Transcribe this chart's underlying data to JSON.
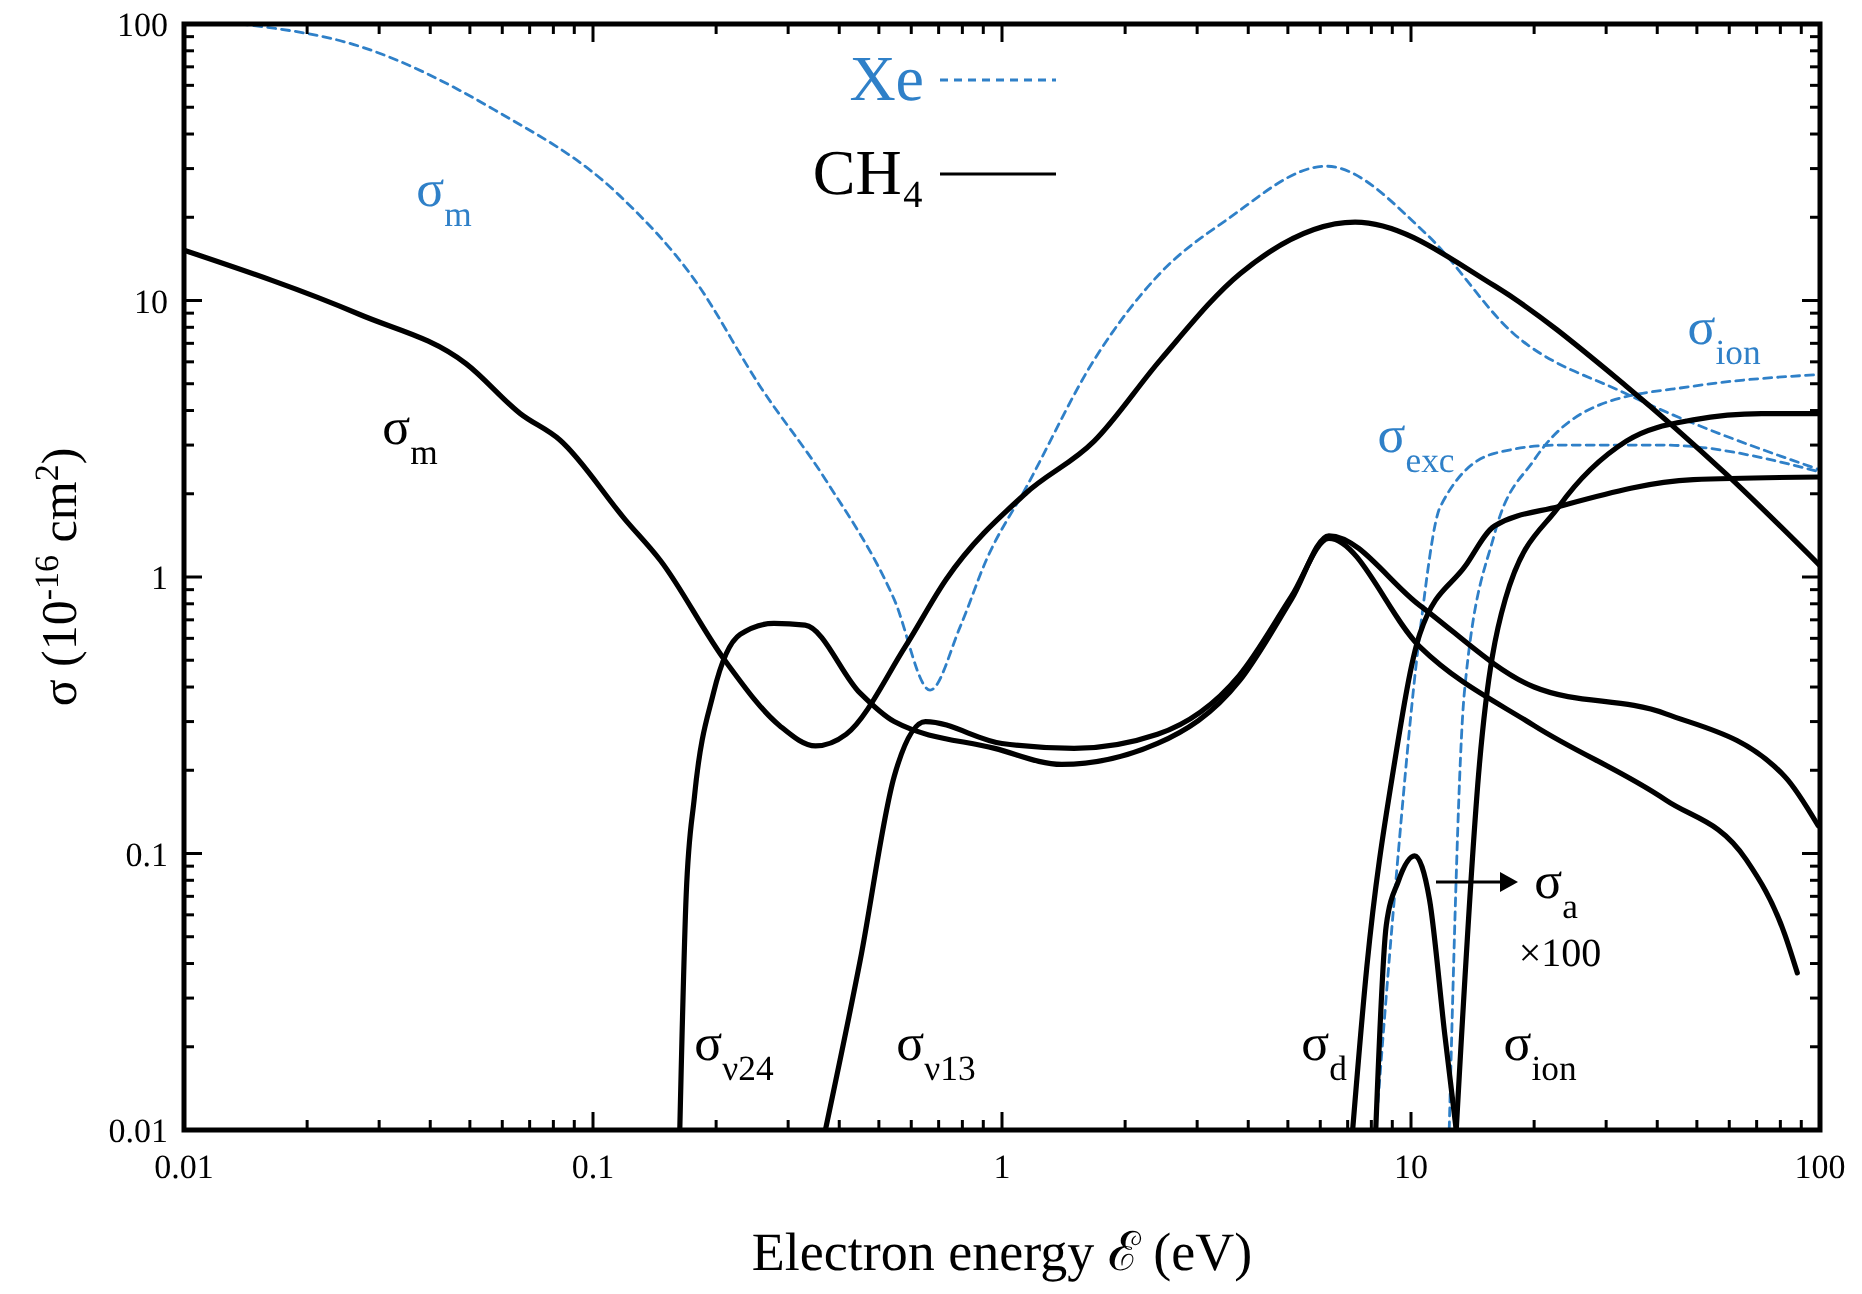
{
  "chart_data": {
    "type": "line",
    "xlabel": "Electron energy  ℰ (eV)",
    "ylabel": "σ (10$^{-16}$ cm$^{2}$)",
    "log": "xy",
    "grid": false,
    "legend": "top",
    "marker": "none",
    "xlim": [
      0.01,
      100
    ],
    "ylim": [
      0.01,
      100
    ],
    "xticks": [
      0.01,
      {
        "value": 0.02,
        "label": null
      },
      {
        "value": 0.03,
        "label": null
      },
      {
        "value": 0.04,
        "label": null
      },
      {
        "value": 0.05,
        "label": null
      },
      {
        "value": 0.06,
        "label": null
      },
      {
        "value": 0.07,
        "label": null
      },
      {
        "value": 0.08,
        "label": null
      },
      {
        "value": 0.09,
        "label": null
      },
      0.1,
      {
        "value": 0.2,
        "label": null
      },
      {
        "value": 0.3,
        "label": null
      },
      {
        "value": 0.4,
        "label": null
      },
      {
        "value": 0.5,
        "label": null
      },
      {
        "value": 0.6,
        "label": null
      },
      {
        "value": 0.7,
        "label": null
      },
      {
        "value": 0.8,
        "label": null
      },
      {
        "value": 0.9,
        "label": null
      },
      1,
      {
        "value": 2,
        "label": null
      },
      {
        "value": 3,
        "label": null
      },
      {
        "value": 4,
        "label": null
      },
      {
        "value": 5,
        "label": null
      },
      {
        "value": 6,
        "label": null
      },
      {
        "value": 7,
        "label": null
      },
      {
        "value": 8,
        "label": null
      },
      {
        "value": 9,
        "label": null
      },
      10,
      {
        "value": 20,
        "label": null
      },
      {
        "value": 30,
        "label": null
      },
      {
        "value": 40,
        "label": null
      },
      {
        "value": 50,
        "label": null
      },
      {
        "value": 60,
        "label": null
      },
      {
        "value": 70,
        "label": null
      },
      {
        "value": 80,
        "label": null
      },
      {
        "value": 90,
        "label": null
      },
      100
    ],
    "yticks": [
      0.01,
      {
        "value": 0.02,
        "label": null
      },
      {
        "value": 0.03,
        "label": null
      },
      {
        "value": 0.04,
        "label": null
      },
      {
        "value": 0.05,
        "label": null
      },
      {
        "value": 0.06,
        "label": null
      },
      {
        "value": 0.07,
        "label": null
      },
      {
        "value": 0.08,
        "label": null
      },
      {
        "value": 0.09,
        "label": null
      },
      0.1,
      {
        "value": 0.2,
        "label": null
      },
      {
        "value": 0.3,
        "label": null
      },
      {
        "value": 0.4,
        "label": null
      },
      {
        "value": 0.5,
        "label": null
      },
      {
        "value": 0.6,
        "label": null
      },
      {
        "value": 0.7,
        "label": null
      },
      {
        "value": 0.8,
        "label": null
      },
      {
        "value": 0.9,
        "label": null
      },
      1,
      {
        "value": 2,
        "label": null
      },
      {
        "value": 3,
        "label": null
      },
      {
        "value": 4,
        "label": null
      },
      {
        "value": 5,
        "label": null
      },
      {
        "value": 6,
        "label": null
      },
      {
        "value": 7,
        "label": null
      },
      {
        "value": 8,
        "label": null
      },
      {
        "value": 9,
        "label": null
      },
      10,
      {
        "value": 20,
        "label": null
      },
      {
        "value": 30,
        "label": null
      },
      {
        "value": 40,
        "label": null
      },
      {
        "value": 50,
        "label": null
      },
      {
        "value": 60,
        "label": null
      },
      {
        "value": 70,
        "label": null
      },
      {
        "value": 80,
        "label": null
      },
      {
        "value": 90,
        "label": null
      },
      100
    ],
    "series": [
      {
        "name": "Xe",
        "color": "#2f80c8",
        "line_style": "dashed",
        "x": [
          0.0137,
          0.0269,
          0.0573,
          0.116,
          0.177,
          0.256,
          0.371,
          0.545,
          0.667,
          0.79,
          0.915,
          1.15,
          1.68,
          2.43,
          3.53,
          6.2,
          10.9,
          17.8,
          33.6,
          100
        ],
        "values": [
          100,
          83,
          49,
          24,
          11.9,
          4.9,
          2.24,
          0.83,
          0.39,
          0.66,
          1.15,
          2.13,
          6.1,
          12.5,
          19.5,
          30.6,
          17.4,
          7.6,
          4.6,
          2.44
        ]
      },
      {
        "color": "#2f80c8",
        "line_style": "dashed",
        "x": [
          8.2,
          9.1,
          10.5,
          11.8,
          16,
          23,
          41,
          100
        ],
        "values": [
          0.01,
          0.068,
          0.62,
          1.8,
          2.8,
          3.0,
          3.0,
          2.4
        ]
      },
      {
        "color": "#2f80c8",
        "line_style": "dashed",
        "x": [
          12.4,
          13.5,
          16,
          20,
          29,
          49,
          100
        ],
        "values": [
          0.01,
          0.38,
          1.43,
          2.65,
          4.2,
          4.9,
          5.4
        ]
      },
      {
        "name": "CH₄",
        "color": "#000000",
        "line_style": "solid",
        "x": [
          0.01,
          0.0269,
          0.049,
          0.0664,
          0.083,
          0.12,
          0.146,
          0.21,
          0.286,
          0.35,
          0.416,
          0.58,
          0.73,
          1.14,
          1.68,
          2.44,
          3.82,
          7.3,
          16,
          33.6,
          58.9,
          100
        ],
        "values": [
          15.2,
          8.9,
          5.9,
          3.9,
          3.13,
          1.61,
          1.15,
          0.5,
          0.29,
          0.245,
          0.27,
          0.56,
          0.98,
          2.0,
          3.1,
          6.1,
          12.5,
          19.2,
          11.3,
          4.9,
          2.36,
          1.1
        ]
      },
      {
        "color": "#000000",
        "line_style": "solid",
        "x": [
          0.163,
          0.169,
          0.177,
          0.197,
          0.229,
          0.277,
          0.33,
          0.45,
          0.545,
          0.96,
          1.4,
          2.4,
          3.8,
          5.1,
          6.3,
          10.5,
          20,
          42,
          82,
          99
        ],
        "values": [
          0.01,
          0.071,
          0.16,
          0.38,
          0.62,
          0.68,
          0.67,
          0.38,
          0.3,
          0.24,
          0.21,
          0.25,
          0.42,
          0.83,
          1.41,
          0.79,
          0.4,
          0.32,
          0.19,
          0.126
        ]
      },
      {
        "color": "#000000",
        "line_style": "solid",
        "x": [
          0.37,
          0.45,
          0.545,
          0.65,
          1,
          1.5,
          2.4,
          3.8,
          5.1,
          6.3,
          10.5,
          20,
          42,
          66,
          82,
          88
        ],
        "values": [
          0.01,
          0.041,
          0.19,
          0.3,
          0.25,
          0.24,
          0.27,
          0.44,
          0.85,
          1.38,
          0.56,
          0.29,
          0.156,
          0.095,
          0.051,
          0.037
        ]
      },
      {
        "color": "#000000",
        "line_style": "solid",
        "x": [
          7.2,
          7.8,
          9.1,
          10.5,
          13.6,
          16,
          23,
          49,
          100
        ],
        "values": [
          0.01,
          0.039,
          0.21,
          0.62,
          1.1,
          1.53,
          1.8,
          2.25,
          2.3
        ]
      },
      {
        "color": "#000000",
        "line_style": "solid",
        "x": [
          12.9,
          14.7,
          17,
          23,
          33.6,
          49,
          72,
          100
        ],
        "values": [
          0.01,
          0.21,
          0.83,
          1.8,
          3.1,
          3.7,
          3.9,
          3.9
        ]
      },
      {
        "color": "#000000",
        "line_style": "solid",
        "x": [
          8.2,
          8.7,
          9.3,
          10.2,
          11.1,
          12.1,
          12.9
        ],
        "values": [
          0.01,
          0.055,
          0.079,
          0.098,
          0.068,
          0.022,
          0.01
        ]
      }
    ],
    "annotations": [
      "σ$_{m}$",
      "σ$_{m}$",
      "σ$_{ν24}$",
      "σ$_{ν13}$",
      "σ$_{d}$",
      "σ$_{ion}$",
      "σ$_{a}$",
      "×100",
      "σ$_{exc}$",
      "σ$_{ion}$"
    ]
  }
}
